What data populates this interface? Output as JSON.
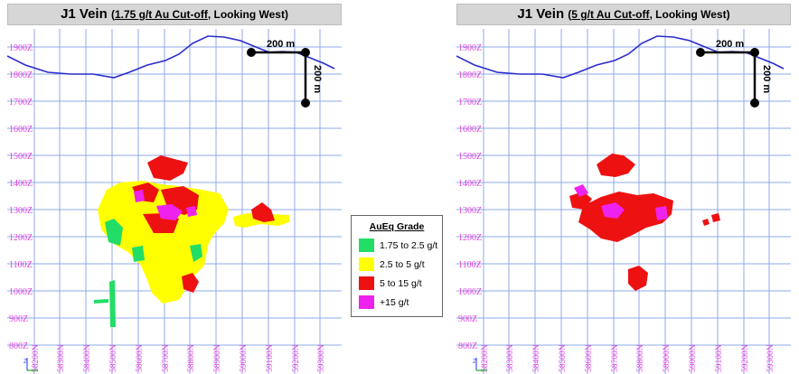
{
  "panels": [
    {
      "title_main": "J1 Vein",
      "title_open": "(",
      "title_cutoff": "1.75 g/t Au Cut-off",
      "title_rest": ", Looking West)",
      "elevations": [
        "1900Z",
        "1800Z",
        "1700Z",
        "1600Z",
        "1500Z",
        "1400Z",
        "1300Z",
        "1200Z",
        "1100Z",
        "1000Z",
        "900Z",
        "800Z"
      ],
      "northings": [
        "58200N",
        "58300N",
        "58400N",
        "58500N",
        "58600N",
        "58700N",
        "58800N",
        "58900N",
        "59000N",
        "59100N",
        "59200N",
        "59300N"
      ],
      "scale_h": "200 m",
      "scale_v": "200 m"
    },
    {
      "title_main": "J1 Vein",
      "title_open": "(",
      "title_cutoff": "5 g/t Au Cut-off",
      "title_rest": ", Looking West)",
      "elevations": [
        "1900Z",
        "1800Z",
        "1700Z",
        "1600Z",
        "1500Z",
        "1400Z",
        "1300Z",
        "1200Z",
        "1100Z",
        "1000Z",
        "900Z",
        "800Z"
      ],
      "northings": [
        "58200N",
        "58300N",
        "58400N",
        "58500N",
        "58600N",
        "58700N",
        "58800N",
        "58900N",
        "59000N",
        "59100N",
        "59200N",
        "59300N"
      ],
      "scale_h": "200 m",
      "scale_v": "200 m"
    }
  ],
  "legend": {
    "title": "AuEq Grade",
    "items": [
      {
        "label": "1.75 to 2.5 g/t",
        "color": "#22dd66"
      },
      {
        "label": "2.5 to 5 g/t",
        "color": "#ffff00"
      },
      {
        "label": "5 to 15 g/t",
        "color": "#ee1111"
      },
      {
        "label": "+15 g/t",
        "color": "#ee22ee"
      }
    ]
  },
  "colors": {
    "grid": "#8fa8e8",
    "topography": "#2b2bcc",
    "axis_labels": "#e040e0"
  }
}
